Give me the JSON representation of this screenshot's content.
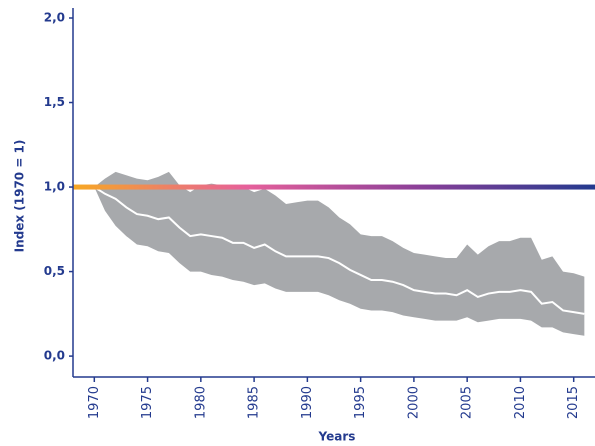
{
  "chart_data": {
    "type": "line",
    "x_label": "Years",
    "y_label": "Index (1970 = 1)",
    "x": [
      1970,
      1971,
      1972,
      1973,
      1974,
      1975,
      1976,
      1977,
      1978,
      1979,
      1980,
      1981,
      1982,
      1983,
      1984,
      1985,
      1986,
      1987,
      1988,
      1989,
      1990,
      1991,
      1992,
      1993,
      1994,
      1995,
      1996,
      1997,
      1998,
      1999,
      2000,
      2001,
      2002,
      2003,
      2004,
      2005,
      2006,
      2007,
      2008,
      2009,
      2010,
      2011,
      2012,
      2013,
      2014,
      2015,
      2016
    ],
    "series": [
      {
        "color": "#ffffff",
        "values": [
          1.0,
          0.96,
          0.93,
          0.88,
          0.84,
          0.83,
          0.81,
          0.82,
          0.76,
          0.71,
          0.72,
          0.71,
          0.7,
          0.67,
          0.67,
          0.64,
          0.66,
          0.62,
          0.59,
          0.59,
          0.59,
          0.59,
          0.58,
          0.55,
          0.51,
          0.48,
          0.45,
          0.45,
          0.44,
          0.42,
          0.39,
          0.38,
          0.37,
          0.37,
          0.36,
          0.39,
          0.35,
          0.37,
          0.38,
          0.38,
          0.39,
          0.38,
          0.31,
          0.32,
          0.27,
          0.26,
          0.25
        ]
      }
    ],
    "band": {
      "color": "#a7a9ac",
      "upper": [
        1.0,
        1.05,
        1.09,
        1.07,
        1.05,
        1.04,
        1.06,
        1.09,
        1.01,
        0.97,
        1.01,
        1.02,
        1.01,
        1.0,
        1.0,
        0.97,
        0.99,
        0.95,
        0.9,
        0.91,
        0.92,
        0.92,
        0.88,
        0.82,
        0.78,
        0.72,
        0.71,
        0.71,
        0.68,
        0.64,
        0.61,
        0.6,
        0.59,
        0.58,
        0.58,
        0.66,
        0.6,
        0.65,
        0.68,
        0.68,
        0.7,
        0.7,
        0.57,
        0.59,
        0.5,
        0.49,
        0.47
      ],
      "lower": [
        1.0,
        0.86,
        0.77,
        0.71,
        0.66,
        0.65,
        0.62,
        0.61,
        0.55,
        0.5,
        0.5,
        0.48,
        0.47,
        0.45,
        0.44,
        0.42,
        0.43,
        0.4,
        0.38,
        0.38,
        0.38,
        0.38,
        0.36,
        0.33,
        0.31,
        0.28,
        0.27,
        0.27,
        0.26,
        0.24,
        0.23,
        0.22,
        0.21,
        0.21,
        0.21,
        0.23,
        0.2,
        0.21,
        0.22,
        0.22,
        0.22,
        0.21,
        0.17,
        0.17,
        0.14,
        0.13,
        0.12
      ]
    },
    "reference_line": {
      "value": 1,
      "colors": [
        "#f7a823",
        "#e6609b",
        "#8a3f98",
        "#233a8e"
      ]
    },
    "xlim": [
      1968,
      2017
    ],
    "xticks": [
      1970,
      1975,
      1980,
      1985,
      1990,
      1995,
      2000,
      2005,
      2010,
      2015
    ],
    "ylim": [
      -0.1,
      2.0
    ],
    "yticks": [
      {
        "value": 0,
        "label": "0,0"
      },
      {
        "value": 0.5,
        "label": "0,5"
      },
      {
        "value": 1,
        "label": "1,0"
      },
      {
        "value": 1.5,
        "label": "1,5"
      },
      {
        "value": 2,
        "label": "2,0"
      }
    ],
    "axis_color": "#233a8e"
  }
}
